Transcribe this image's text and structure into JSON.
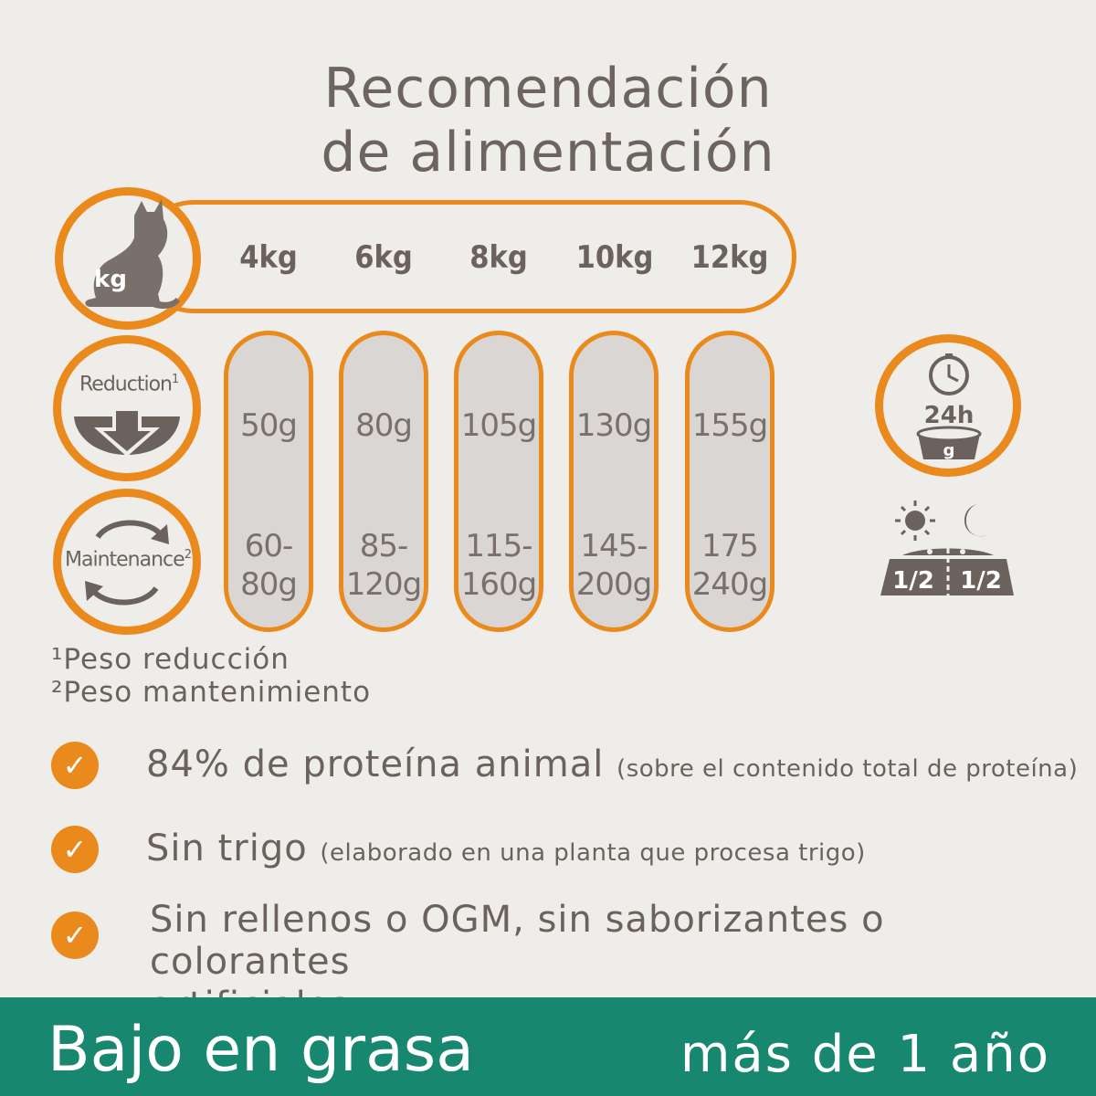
{
  "title": {
    "line1": "Recomendación",
    "line2": "de alimentación"
  },
  "icons": {
    "cat": "cat-icon",
    "kg_label": "kg",
    "reduction_label": "Reduction",
    "reduction_sup": "1",
    "maintenance_label": "Maintenance",
    "maintenance_sup": "2",
    "daily_label": "24h",
    "bowl_label": "g",
    "half_left": "1/2",
    "half_right": "1/2"
  },
  "table": {
    "weights": [
      "4kg",
      "6kg",
      "8kg",
      "10kg",
      "12kg"
    ],
    "reduction": [
      "50g",
      "80g",
      "105g",
      "130g",
      "155g"
    ],
    "maintenance_line1": [
      "60-",
      "85-",
      "115-",
      "145-",
      "175"
    ],
    "maintenance_line2": [
      "80g",
      "120g",
      "160g",
      "200g",
      "240g"
    ]
  },
  "footnotes": {
    "note1": "¹Peso reducción",
    "note2": "²Peso mantenimiento"
  },
  "features": [
    {
      "main": "84% de proteína animal",
      "sub": "(sobre el contenido total de proteína)"
    },
    {
      "main": "Sin trigo",
      "sub": "(elaborado en una planta que procesa trigo)"
    },
    {
      "main": "Sin rellenos o OGM, sin saborizantes o colorantes",
      "line2": "artificiales"
    }
  ],
  "banner": {
    "left": "Bajo en grasa",
    "right": "más de 1 año"
  },
  "colors": {
    "accent": "#ea8a1c",
    "text": "#6b625d",
    "banner": "#17876f",
    "column_fill": "#d9d6d3",
    "background": "#efedea"
  }
}
